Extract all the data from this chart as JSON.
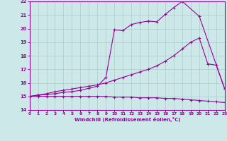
{
  "xlabel": "Windchill (Refroidissement éolien,°C)",
  "bg_color": "#cce8e8",
  "line_color": "#990099",
  "grid_color": "#b0c8c8",
  "xlim": [
    0,
    23
  ],
  "ylim": [
    14,
    22
  ],
  "xticks": [
    0,
    1,
    2,
    3,
    4,
    5,
    6,
    7,
    8,
    9,
    10,
    11,
    12,
    13,
    14,
    15,
    16,
    17,
    18,
    19,
    20,
    21,
    22,
    23
  ],
  "yticks": [
    14,
    15,
    16,
    17,
    18,
    19,
    20,
    21,
    22
  ],
  "line1_x": [
    0,
    1,
    2,
    3,
    4,
    5,
    6,
    7,
    8,
    9,
    10,
    11,
    12,
    13,
    14,
    15,
    16,
    17,
    18,
    20,
    23
  ],
  "line1_y": [
    15.0,
    15.1,
    15.15,
    15.2,
    15.3,
    15.35,
    15.45,
    15.6,
    15.75,
    16.4,
    19.9,
    19.85,
    20.3,
    20.45,
    20.55,
    20.5,
    21.05,
    21.55,
    22.0,
    20.9,
    15.55
  ],
  "line2_x": [
    0,
    1,
    2,
    3,
    4,
    5,
    6,
    7,
    8,
    9,
    10,
    11,
    12,
    13,
    14,
    15,
    16,
    17,
    18,
    19,
    20,
    21,
    22,
    23
  ],
  "line2_y": [
    15.0,
    15.1,
    15.2,
    15.35,
    15.45,
    15.55,
    15.65,
    15.75,
    15.85,
    16.0,
    16.2,
    16.4,
    16.6,
    16.8,
    17.0,
    17.25,
    17.6,
    18.0,
    18.5,
    19.0,
    19.3,
    17.4,
    17.3,
    15.55
  ],
  "line3_x": [
    0,
    1,
    2,
    3,
    4,
    5,
    6,
    7,
    8,
    9,
    10,
    11,
    12,
    13,
    14,
    15,
    16,
    17,
    18,
    19,
    20,
    21,
    22,
    23
  ],
  "line3_y": [
    15.0,
    15.0,
    15.0,
    15.0,
    15.0,
    15.0,
    15.0,
    15.0,
    15.0,
    15.0,
    14.95,
    14.95,
    14.95,
    14.9,
    14.9,
    14.9,
    14.85,
    14.85,
    14.8,
    14.75,
    14.7,
    14.65,
    14.6,
    14.55
  ]
}
